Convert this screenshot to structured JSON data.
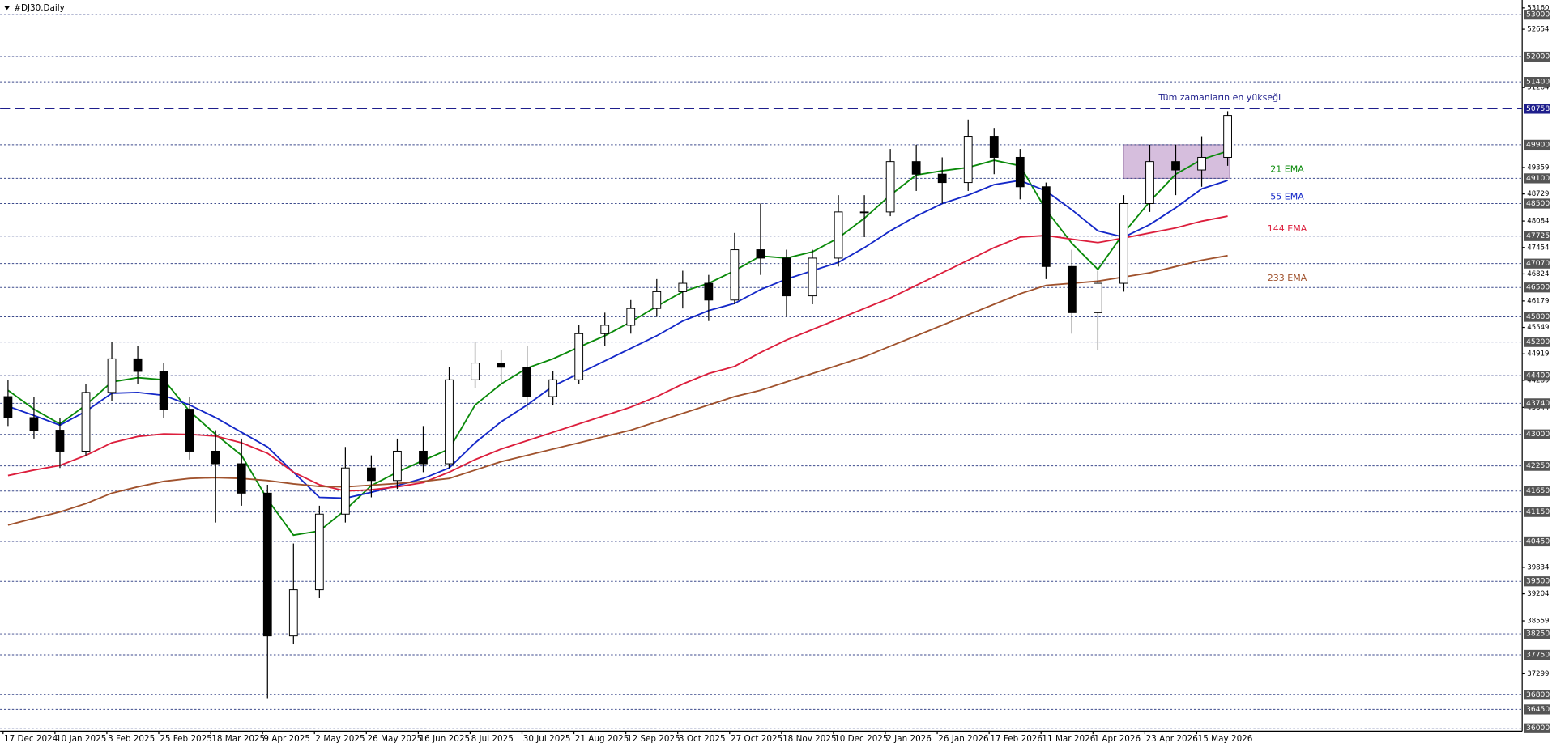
{
  "chart_data": {
    "type": "candlestick",
    "title": "#DJ30.Daily",
    "categories": [
      "17 Dec 2024",
      null,
      "10 Jan 2025",
      null,
      "3 Feb 2025",
      null,
      "25 Feb 2025",
      null,
      "18 Mar 2025",
      null,
      "9 Apr 2025",
      null,
      "2 May 2025",
      null,
      "26 May 2025",
      null,
      "16 Jun 2025",
      null,
      "8 Jul 2025",
      null,
      "30 Jul 2025",
      null,
      "21 Aug 2025",
      null,
      "12 Sep 2025",
      null,
      "3 Oct 2025",
      null,
      "27 Oct 2025",
      null,
      "18 Nov 2025",
      null,
      "10 Dec 2025",
      null,
      "2 Jan 2026",
      null,
      "26 Jan 2026",
      null,
      "17 Feb 2026",
      null,
      "11 Mar 2026",
      null,
      "1 Apr 2026",
      null,
      "23 Apr 2026",
      null,
      "15 May 2026",
      null
    ],
    "open": [
      43900,
      43400,
      43100,
      42600,
      44000,
      44800,
      44500,
      43600,
      42600,
      42300,
      41600,
      38200,
      39300,
      41100,
      42200,
      41900,
      42600,
      42300,
      44300,
      44700,
      44600,
      43900,
      44300,
      45400,
      45600,
      46000,
      46400,
      46600,
      46200,
      47400,
      47200,
      46300,
      47200,
      48300,
      48300,
      49500,
      49200,
      49000,
      50100,
      49600,
      48900,
      47000,
      45900,
      46600,
      48500,
      49500,
      49300,
      49600
    ],
    "high": [
      44300,
      43900,
      43400,
      44200,
      45200,
      45100,
      44700,
      43900,
      43100,
      42900,
      41800,
      40400,
      41300,
      42700,
      42500,
      42900,
      43200,
      44600,
      45200,
      45000,
      45100,
      44500,
      45600,
      45900,
      46200,
      46700,
      46900,
      46800,
      47800,
      48500,
      47400,
      47400,
      48700,
      48700,
      49800,
      49900,
      49600,
      50500,
      50300,
      49800,
      49000,
      47400,
      46900,
      48700,
      49900,
      49900,
      50100,
      50700
    ],
    "low": [
      43200,
      42900,
      42200,
      42500,
      43800,
      44200,
      43400,
      42400,
      40900,
      41300,
      36700,
      38000,
      39100,
      40900,
      41500,
      41700,
      42100,
      42200,
      44100,
      44200,
      43600,
      43700,
      44200,
      45100,
      45400,
      45800,
      46000,
      45700,
      46100,
      46800,
      45800,
      46100,
      47000,
      47700,
      48200,
      48800,
      48500,
      48800,
      49200,
      48600,
      46700,
      45400,
      45000,
      46400,
      48300,
      48700,
      48900,
      49400
    ],
    "close": [
      43400,
      43100,
      42600,
      44000,
      44800,
      44500,
      43600,
      42600,
      42300,
      41600,
      38200,
      39300,
      41100,
      42200,
      41900,
      42600,
      42300,
      44300,
      44700,
      44600,
      43900,
      44300,
      45400,
      45600,
      46000,
      46400,
      46600,
      46200,
      47400,
      47200,
      46300,
      47200,
      48300,
      48300,
      49500,
      49200,
      49000,
      50100,
      49600,
      48900,
      47000,
      45900,
      46600,
      48500,
      49500,
      49300,
      49600,
      50600
    ],
    "candle_color": "#000000",
    "series": [
      {
        "name": "21 EMA",
        "color": "#0a8a0a",
        "values": [
          44050,
          43600,
          43250,
          43700,
          44250,
          44350,
          44300,
          43550,
          43000,
          42500,
          41450,
          40600,
          40700,
          41200,
          41780,
          42100,
          42380,
          42650,
          43700,
          44200,
          44580,
          44800,
          45080,
          45350,
          45680,
          46050,
          46400,
          46600,
          46900,
          47250,
          47200,
          47350,
          47680,
          48150,
          48700,
          49180,
          49280,
          49360,
          49530,
          49400,
          48350,
          47550,
          46930,
          47800,
          48550,
          49200,
          49550,
          49750
        ]
      },
      {
        "name": "55 EMA",
        "color": "#1428c8",
        "values": [
          43670,
          43450,
          43220,
          43550,
          43980,
          44000,
          43930,
          43700,
          43400,
          43050,
          42700,
          42100,
          41500,
          41480,
          41620,
          41780,
          41950,
          42200,
          42800,
          43300,
          43700,
          44150,
          44450,
          44750,
          45050,
          45350,
          45700,
          45950,
          46120,
          46450,
          46700,
          46900,
          47100,
          47450,
          47850,
          48200,
          48500,
          48700,
          48950,
          49050,
          48800,
          48350,
          47850,
          47700,
          48000,
          48400,
          48850,
          49050
        ]
      },
      {
        "name": "144 EMA",
        "color": "#dc1e3c",
        "values": [
          42020,
          42150,
          42260,
          42500,
          42800,
          42950,
          43010,
          43000,
          42960,
          42800,
          42550,
          42100,
          41800,
          41650,
          41680,
          41750,
          41850,
          42100,
          42400,
          42650,
          42850,
          43050,
          43250,
          43450,
          43650,
          43900,
          44200,
          44450,
          44620,
          44950,
          45250,
          45500,
          45750,
          46000,
          46250,
          46550,
          46850,
          47150,
          47450,
          47700,
          47740,
          47650,
          47570,
          47680,
          47800,
          47920,
          48080,
          48200
        ]
      },
      {
        "name": "233 EMA",
        "color": "#a0522d",
        "values": [
          40840,
          41000,
          41150,
          41350,
          41600,
          41750,
          41880,
          41950,
          41970,
          41950,
          41900,
          41820,
          41760,
          41750,
          41790,
          41830,
          41880,
          41950,
          42150,
          42350,
          42500,
          42650,
          42800,
          42950,
          43100,
          43300,
          43500,
          43700,
          43900,
          44050,
          44250,
          44450,
          44650,
          44850,
          45100,
          45350,
          45600,
          45850,
          46100,
          46350,
          46550,
          46600,
          46650,
          46750,
          46850,
          47000,
          47150,
          47260
        ]
      }
    ],
    "ylim": [
      36000,
      53350
    ],
    "yticks": [
      53160,
      52654,
      51264,
      49359,
      48729,
      48084,
      47454,
      46824,
      46179,
      45549,
      44919,
      44289,
      43644,
      39834,
      39204,
      38559,
      37299
    ],
    "levels": [
      53000,
      52000,
      51400,
      49900,
      49100,
      48500,
      47725,
      47070,
      46500,
      45800,
      45200,
      44400,
      43740,
      43000,
      42250,
      41650,
      41150,
      40450,
      39500,
      38250,
      37750,
      36800,
      36450,
      36000
    ],
    "level_color": "#3c4a8c",
    "ath": {
      "value": 50758,
      "text": "Tüm zamanların en yükseği",
      "color": "#1e1e8c"
    },
    "zone": {
      "high": 49900,
      "low": 49100,
      "color": "#c8a8d2"
    }
  }
}
